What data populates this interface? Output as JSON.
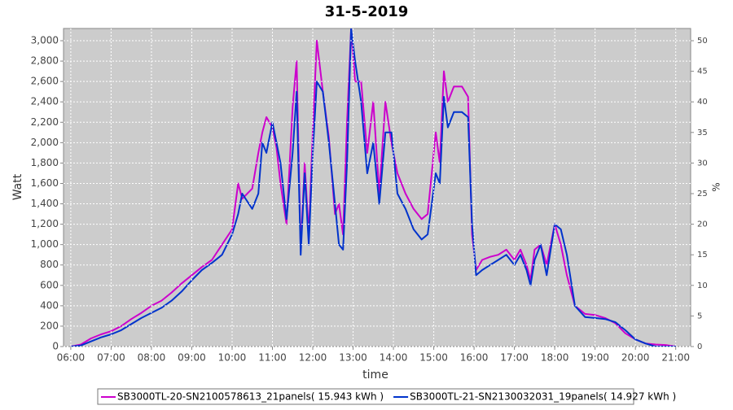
{
  "chart_data": {
    "type": "line",
    "title": "31-5-2019",
    "x_label": "time",
    "y_label": "Watt",
    "y2_label": "%",
    "x": [
      6.0,
      6.25,
      6.5,
      6.75,
      7.0,
      7.25,
      7.5,
      7.75,
      8.0,
      8.25,
      8.5,
      8.75,
      9.0,
      9.25,
      9.5,
      9.75,
      10.0,
      10.15,
      10.25,
      10.5,
      10.65,
      10.75,
      10.85,
      11.0,
      11.1,
      11.2,
      11.35,
      11.5,
      11.6,
      11.7,
      11.8,
      11.9,
      12.0,
      12.1,
      12.25,
      12.4,
      12.55,
      12.65,
      12.75,
      12.85,
      12.95,
      13.05,
      13.2,
      13.35,
      13.5,
      13.65,
      13.8,
      13.95,
      14.1,
      14.3,
      14.5,
      14.7,
      14.85,
      14.95,
      15.05,
      15.15,
      15.25,
      15.35,
      15.5,
      15.7,
      15.85,
      15.95,
      16.05,
      16.2,
      16.4,
      16.6,
      16.8,
      17.0,
      17.15,
      17.3,
      17.4,
      17.5,
      17.65,
      17.8,
      18.0,
      18.15,
      18.3,
      18.5,
      18.75,
      19.0,
      19.25,
      19.5,
      19.75,
      20.0,
      20.25,
      20.5,
      20.75,
      21.0
    ],
    "series": [
      {
        "name": "SB3000TL-20-SN2100578613_21panels( 15.943 kWh )",
        "color": "#cc00cc",
        "values": [
          0,
          20,
          80,
          120,
          150,
          200,
          270,
          330,
          400,
          450,
          530,
          620,
          700,
          780,
          850,
          1000,
          1150,
          1600,
          1450,
          1550,
          1900,
          2100,
          2250,
          2150,
          1950,
          1600,
          1200,
          2350,
          2800,
          950,
          1800,
          1100,
          2100,
          3000,
          2500,
          2050,
          1300,
          1400,
          1100,
          2200,
          3120,
          2600,
          2600,
          1900,
          2400,
          1500,
          2400,
          2000,
          1700,
          1500,
          1350,
          1250,
          1300,
          1700,
          2100,
          1800,
          2700,
          2400,
          2550,
          2550,
          2450,
          1100,
          750,
          850,
          880,
          900,
          950,
          850,
          950,
          800,
          650,
          950,
          1000,
          800,
          1200,
          1000,
          700,
          400,
          320,
          310,
          280,
          230,
          130,
          70,
          30,
          20,
          15,
          0
        ]
      },
      {
        "name": "SB3000TL-21-SN2130032031_19panels( 14.927 kWh )",
        "color": "#0033cc",
        "values": [
          0,
          10,
          50,
          90,
          120,
          160,
          220,
          280,
          330,
          380,
          450,
          540,
          650,
          750,
          820,
          900,
          1100,
          1300,
          1500,
          1350,
          1500,
          2000,
          1900,
          2200,
          2000,
          1800,
          1250,
          1900,
          2500,
          900,
          1700,
          1000,
          1900,
          2600,
          2500,
          2000,
          1400,
          1000,
          950,
          1800,
          3120,
          2800,
          2400,
          1700,
          2000,
          1400,
          2100,
          2100,
          1500,
          1350,
          1150,
          1050,
          1100,
          1400,
          1700,
          1600,
          2450,
          2150,
          2300,
          2300,
          2250,
          1200,
          700,
          750,
          800,
          850,
          900,
          800,
          900,
          750,
          600,
          850,
          1000,
          700,
          1200,
          1150,
          900,
          400,
          290,
          280,
          270,
          240,
          160,
          70,
          30,
          0,
          0,
          0
        ]
      }
    ],
    "xlim": [
      5.82,
      21.37
    ],
    "xticks": [
      {
        "value": 6,
        "label": "06:00"
      },
      {
        "value": 7,
        "label": "07:00"
      },
      {
        "value": 8,
        "label": "08:00"
      },
      {
        "value": 9,
        "label": "09:00"
      },
      {
        "value": 10,
        "label": "10:00"
      },
      {
        "value": 11,
        "label": "11:00"
      },
      {
        "value": 12,
        "label": "12:00"
      },
      {
        "value": 13,
        "label": "13:00"
      },
      {
        "value": 14,
        "label": "14:00"
      },
      {
        "value": 15,
        "label": "15:00"
      },
      {
        "value": 16,
        "label": "16:00"
      },
      {
        "value": 17,
        "label": "17:00"
      },
      {
        "value": 18,
        "label": "18:00"
      },
      {
        "value": 19,
        "label": "19:00"
      },
      {
        "value": 20,
        "label": "20:00"
      },
      {
        "value": 21,
        "label": "21:00"
      }
    ],
    "ylim": [
      0,
      3120
    ],
    "yticks": [
      0,
      200,
      400,
      600,
      800,
      {
        "value": 1000,
        "label": "1,000"
      },
      {
        "value": 1200,
        "label": "1,200"
      },
      {
        "value": 1400,
        "label": "1,400"
      },
      {
        "value": 1600,
        "label": "1,600"
      },
      {
        "value": 1800,
        "label": "1,800"
      },
      {
        "value": 2000,
        "label": "2,000"
      },
      {
        "value": 2200,
        "label": "2,200"
      },
      {
        "value": 2400,
        "label": "2,400"
      },
      {
        "value": 2600,
        "label": "2,600"
      },
      {
        "value": 2800,
        "label": "2,800"
      },
      {
        "value": 3000,
        "label": "3,000"
      }
    ],
    "y2lim": [
      0,
      52
    ],
    "y2ticks": [
      0,
      5,
      10,
      15,
      20,
      25,
      30,
      35,
      40,
      45,
      50
    ],
    "grid": true,
    "legend": "bottom"
  }
}
